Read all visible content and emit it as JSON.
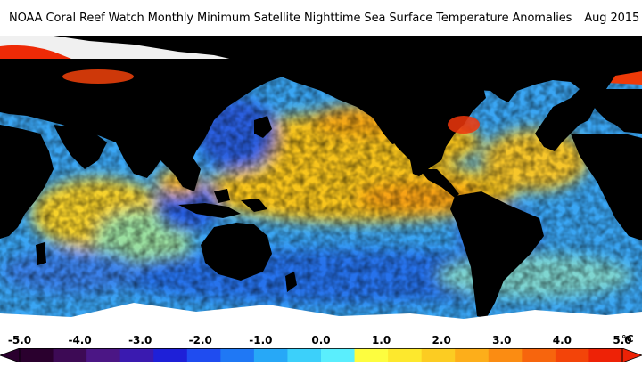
{
  "title": {
    "text": "NOAA Coral Reef Watch Monthly Minimum Satellite Nighttime Sea Surface Temperature Anomalies",
    "date": "Aug 2015"
  },
  "legend": {
    "unit": "°C",
    "ticks": [
      "-5.0",
      "-4.0",
      "-3.0",
      "-2.0",
      "-1.0",
      "0.0",
      "1.0",
      "2.0",
      "3.0",
      "4.0",
      "5.0"
    ],
    "range": [
      -5.0,
      5.0
    ],
    "colors": [
      "#2a002e",
      "#3d0a55",
      "#4b1685",
      "#3a1ab0",
      "#1e20d8",
      "#1f4cf0",
      "#1f78f5",
      "#27a8f7",
      "#3cd0fa",
      "#5aeefd",
      "#fdfd3f",
      "#fde82d",
      "#fccc22",
      "#fdae1a",
      "#fb8c12",
      "#f7650d",
      "#f34409",
      "#ee2206"
    ]
  },
  "colors": {
    "land": "#000000",
    "ice": "#ffffff",
    "ocean_base": "#2f9cf2",
    "warm_anomaly": "#f9c21a",
    "hot_anomaly": "#f58a14",
    "extreme_anomaly": "#ee2a06",
    "cool_anomaly": "#1f4ad8"
  }
}
